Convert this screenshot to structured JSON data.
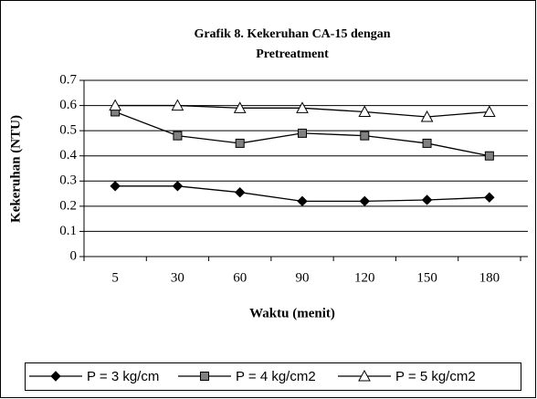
{
  "chart_data": {
    "type": "line",
    "title": [
      "Grafik 8. Kekeruhan CA-15 dengan",
      "Pretreatment"
    ],
    "x_label": "Waktu (menit)",
    "y_label": "Kekeruhan (NTU)",
    "categories": [
      "5",
      "30",
      "60",
      "90",
      "120",
      "150",
      "180"
    ],
    "series": [
      {
        "name": "P = 3 kg/cm",
        "color": "#000000",
        "marker": "diamond",
        "marker_fill": "#000000",
        "values": [
          0.28,
          0.28,
          0.255,
          0.22,
          0.22,
          0.225,
          0.235
        ]
      },
      {
        "name": "P = 4 kg/cm2",
        "color": "#000000",
        "marker": "square",
        "marker_fill": "#808080",
        "values": [
          0.575,
          0.48,
          0.45,
          0.49,
          0.48,
          0.45,
          0.4
        ]
      },
      {
        "name": "P = 5 kg/cm2",
        "color": "#000000",
        "marker": "triangle",
        "marker_fill": "#ffffff",
        "values": [
          0.6,
          0.6,
          0.59,
          0.59,
          0.575,
          0.555,
          0.575
        ]
      }
    ],
    "ylim": [
      0,
      0.7
    ],
    "yticks": [
      0,
      0.1,
      0.2,
      0.3,
      0.4,
      0.5,
      0.6,
      0.7
    ],
    "grid": true,
    "legend": "bottom"
  }
}
